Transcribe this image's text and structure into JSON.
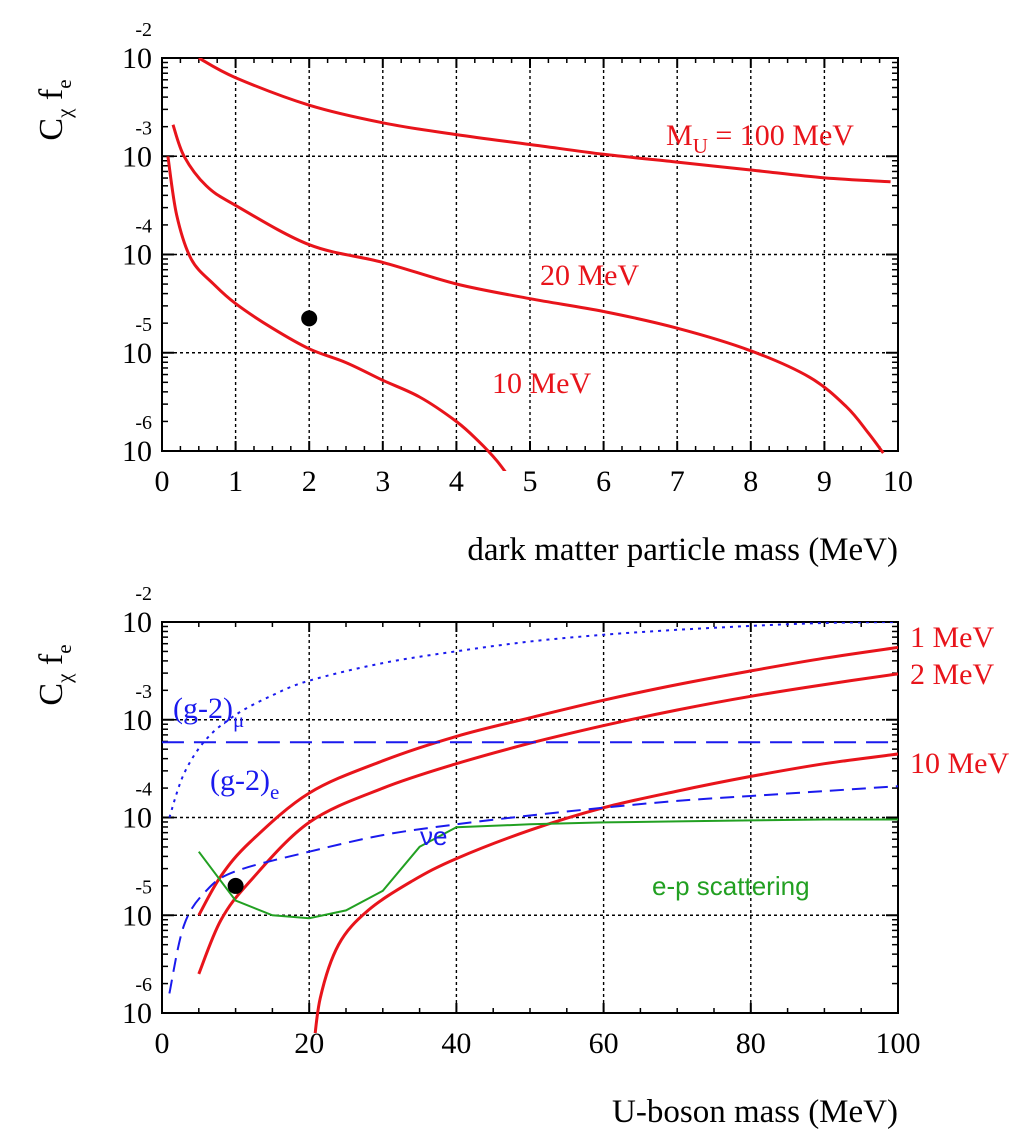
{
  "chart_data": [
    {
      "type": "line",
      "xlabel": "dark matter particle mass (MeV)",
      "ylabel": "C",
      "ylabel_sub1": "χ",
      "ylabel_mid": " f",
      "ylabel_sub2": "e",
      "xlim": [
        0,
        10
      ],
      "ylim_exp": [
        -6,
        -2
      ],
      "y_scale": "log",
      "grid": true,
      "x_ticks": [
        "0",
        "1",
        "2",
        "3",
        "4",
        "5",
        "6",
        "7",
        "8",
        "9",
        "10"
      ],
      "y_ticks": [
        {
          "base": "10",
          "exp": "-2"
        },
        {
          "base": "10",
          "exp": "-3"
        },
        {
          "base": "10",
          "exp": "-4"
        },
        {
          "base": "10",
          "exp": "-5"
        },
        {
          "base": "10",
          "exp": "-6"
        }
      ],
      "series": [
        {
          "label": "M",
          "label_sub": "U",
          "label_rest": " = 100 MeV",
          "color": "#e8141b",
          "style": "solid",
          "points": [
            [
              0.5,
              -2.0
            ],
            [
              1,
              -2.2
            ],
            [
              2,
              -2.48
            ],
            [
              3,
              -2.66
            ],
            [
              4,
              -2.78
            ],
            [
              5,
              -2.88
            ],
            [
              6,
              -2.98
            ],
            [
              7,
              -3.06
            ],
            [
              8,
              -3.14
            ],
            [
              9,
              -3.22
            ],
            [
              9.9,
              -3.26
            ]
          ]
        },
        {
          "label": "20 MeV",
          "color": "#e8141b",
          "style": "solid",
          "points": [
            [
              0.15,
              -2.68
            ],
            [
              0.3,
              -3.0
            ],
            [
              0.6,
              -3.3
            ],
            [
              1,
              -3.5
            ],
            [
              2,
              -3.9
            ],
            [
              3,
              -4.08
            ],
            [
              4,
              -4.3
            ],
            [
              5,
              -4.45
            ],
            [
              6,
              -4.58
            ],
            [
              7,
              -4.75
            ],
            [
              8,
              -4.98
            ],
            [
              8.8,
              -5.25
            ],
            [
              9.3,
              -5.55
            ],
            [
              9.6,
              -5.82
            ],
            [
              9.8,
              -6.02
            ]
          ]
        },
        {
          "label": "10 MeV",
          "color": "#e8141b",
          "style": "solid",
          "points": [
            [
              0.08,
              -3.0
            ],
            [
              0.2,
              -3.6
            ],
            [
              0.4,
              -4.05
            ],
            [
              0.7,
              -4.3
            ],
            [
              1,
              -4.5
            ],
            [
              1.5,
              -4.75
            ],
            [
              2,
              -4.96
            ],
            [
              2.5,
              -5.1
            ],
            [
              3,
              -5.28
            ],
            [
              3.5,
              -5.45
            ],
            [
              4,
              -5.7
            ],
            [
              4.3,
              -5.9
            ],
            [
              4.55,
              -6.1
            ],
            [
              4.75,
              -6.3
            ],
            [
              4.8,
              -6.35
            ]
          ]
        }
      ],
      "marker": {
        "x": 2.0,
        "y": -4.65,
        "color": "#000000"
      }
    },
    {
      "type": "line",
      "xlabel": "U-boson mass (MeV)",
      "ylabel": "C",
      "ylabel_sub1": "χ",
      "ylabel_mid": " f",
      "ylabel_sub2": "e",
      "xlim": [
        0,
        100
      ],
      "ylim_exp": [
        -6,
        -2
      ],
      "y_scale": "log",
      "grid": true,
      "x_ticks": [
        "0",
        "20",
        "40",
        "60",
        "80",
        "100"
      ],
      "y_ticks": [
        {
          "base": "10",
          "exp": "-2"
        },
        {
          "base": "10",
          "exp": "-3"
        },
        {
          "base": "10",
          "exp": "-4"
        },
        {
          "base": "10",
          "exp": "-5"
        },
        {
          "base": "10",
          "exp": "-6"
        }
      ],
      "series": [
        {
          "label": "1 MeV",
          "color": "#e8141b",
          "style": "solid",
          "points": [
            [
              5,
              -5.0
            ],
            [
              8,
              -4.6
            ],
            [
              12,
              -4.25
            ],
            [
              20,
              -3.75
            ],
            [
              30,
              -3.42
            ],
            [
              40,
              -3.17
            ],
            [
              50,
              -2.98
            ],
            [
              60,
              -2.8
            ],
            [
              70,
              -2.64
            ],
            [
              80,
              -2.5
            ],
            [
              90,
              -2.37
            ],
            [
              100,
              -2.26
            ]
          ]
        },
        {
          "label": "2 MeV",
          "color": "#e8141b",
          "style": "solid",
          "points": [
            [
              5,
              -5.6
            ],
            [
              8,
              -5.05
            ],
            [
              12,
              -4.65
            ],
            [
              20,
              -4.05
            ],
            [
              30,
              -3.7
            ],
            [
              40,
              -3.45
            ],
            [
              50,
              -3.24
            ],
            [
              60,
              -3.06
            ],
            [
              70,
              -2.9
            ],
            [
              80,
              -2.76
            ],
            [
              90,
              -2.64
            ],
            [
              100,
              -2.53
            ]
          ]
        },
        {
          "label": "10 MeV",
          "color": "#e8141b",
          "style": "solid",
          "points": [
            [
              20.5,
              -6.45
            ],
            [
              21.5,
              -5.85
            ],
            [
              24,
              -5.3
            ],
            [
              28,
              -4.95
            ],
            [
              34,
              -4.65
            ],
            [
              40,
              -4.42
            ],
            [
              50,
              -4.13
            ],
            [
              60,
              -3.9
            ],
            [
              70,
              -3.73
            ],
            [
              80,
              -3.58
            ],
            [
              90,
              -3.45
            ],
            [
              100,
              -3.35
            ]
          ]
        },
        {
          "label": "(g-2)",
          "label_sub": "μ",
          "color": "#1a1aee",
          "style": "longdash",
          "points": [
            [
              0,
              -3.23
            ],
            [
              100,
              -3.23
            ]
          ]
        },
        {
          "label": "(g-2)",
          "label_sub": "e",
          "color": "#1a1aee",
          "style": "dotted",
          "points": [
            [
              1,
              -4.0
            ],
            [
              3,
              -3.55
            ],
            [
              6,
              -3.2
            ],
            [
              10,
              -2.95
            ],
            [
              15,
              -2.75
            ],
            [
              20,
              -2.6
            ],
            [
              30,
              -2.42
            ],
            [
              40,
              -2.3
            ],
            [
              50,
              -2.2
            ],
            [
              60,
              -2.13
            ],
            [
              70,
              -2.08
            ],
            [
              80,
              -2.04
            ],
            [
              90,
              -2.01
            ],
            [
              100,
              -2.0
            ]
          ]
        },
        {
          "label": "νe",
          "color": "#1a1aee",
          "style": "dashed",
          "points": [
            [
              1,
              -5.8
            ],
            [
              3,
              -5.1
            ],
            [
              6,
              -4.75
            ],
            [
              10,
              -4.55
            ],
            [
              20,
              -4.35
            ],
            [
              30,
              -4.18
            ],
            [
              40,
              -4.07
            ],
            [
              50,
              -3.98
            ],
            [
              60,
              -3.9
            ],
            [
              70,
              -3.83
            ],
            [
              80,
              -3.78
            ],
            [
              90,
              -3.73
            ],
            [
              100,
              -3.68
            ]
          ]
        },
        {
          "label": "e-p scattering",
          "color": "#22a022",
          "style": "solid",
          "points": [
            [
              5,
              -4.35
            ],
            [
              10,
              -4.85
            ],
            [
              15,
              -5.0
            ],
            [
              20,
              -5.03
            ],
            [
              25,
              -4.95
            ],
            [
              30,
              -4.75
            ],
            [
              35,
              -4.3
            ],
            [
              40,
              -4.1
            ],
            [
              50,
              -4.07
            ],
            [
              60,
              -4.05
            ],
            [
              70,
              -4.04
            ],
            [
              80,
              -4.03
            ],
            [
              90,
              -4.02
            ],
            [
              100,
              -4.02
            ]
          ]
        }
      ],
      "marker": {
        "x": 10.0,
        "y": -4.7,
        "color": "#000000"
      }
    }
  ]
}
